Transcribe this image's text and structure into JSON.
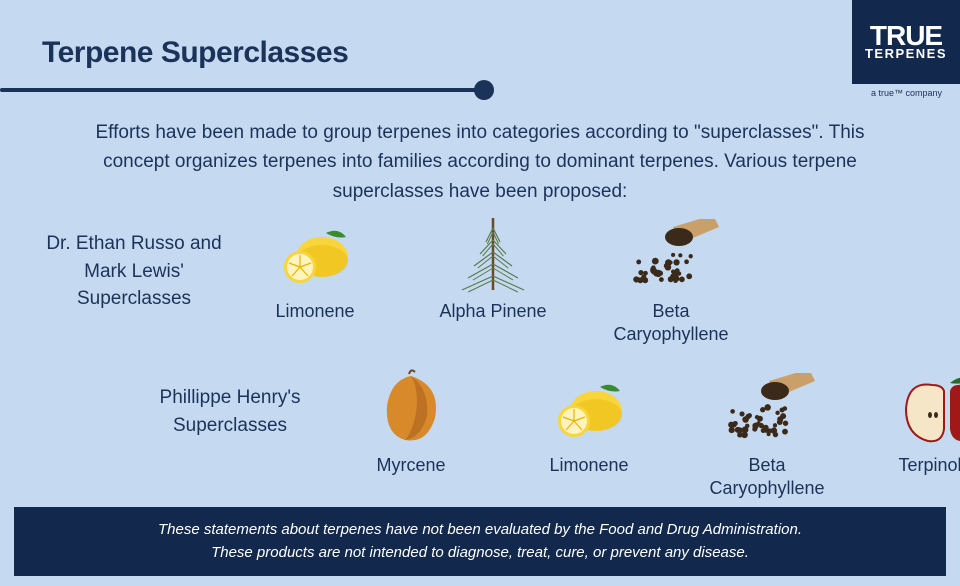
{
  "colors": {
    "page_bg": "#c5d9f0",
    "navy": "#1b3358",
    "text": "#1b3358",
    "footer_bg": "#12294d",
    "footer_text": "#ffffff",
    "logo_bg": "#12294d"
  },
  "typography": {
    "title_fontsize": 30,
    "body_fontsize": 19,
    "caption_fontsize": 18,
    "footer_fontsize": 15
  },
  "logo": {
    "line1": "TRUE",
    "line2": "TERPENES",
    "subline": "a true™ company"
  },
  "title": "Terpene Superclasses",
  "intro": "Efforts have been made to group terpenes into categories according to \"superclasses\". This concept organizes terpenes into families according to dominant terpenes. Various terpene superclasses have been proposed:",
  "rows": [
    {
      "label": "Dr. Ethan Russo and Mark Lewis' Superclasses",
      "items": [
        {
          "name": "Limonene",
          "icon": "lemon"
        },
        {
          "name": "Alpha Pinene",
          "icon": "pine"
        },
        {
          "name": "Beta Caryophyllene",
          "icon": "pepper"
        }
      ]
    },
    {
      "label": "Phillippe Henry's Superclasses",
      "items": [
        {
          "name": "Myrcene",
          "icon": "mango"
        },
        {
          "name": "Limonene",
          "icon": "lemon"
        },
        {
          "name": "Beta Caryophyllene",
          "icon": "pepper"
        },
        {
          "name": "Terpinolene",
          "icon": "apple"
        }
      ]
    }
  ],
  "footer": {
    "line1": "These statements about terpenes have not been evaluated by the Food and Drug Administration.",
    "line2": "These products are not intended to diagnose, treat, cure, or prevent any disease."
  },
  "icon_colors": {
    "lemon_body": "#f7d53b",
    "lemon_shadow": "#e8b400",
    "lemon_leaf": "#3a8a2e",
    "pine_needle": "#5a7a4a",
    "pine_branch": "#6b4a2a",
    "pepper_seed": "#3b2a1a",
    "pepper_scoop": "#c9a06a",
    "mango_body": "#d88a2a",
    "mango_shadow": "#a05a1a",
    "apple_body": "#a01818",
    "apple_flesh": "#f5e6c8",
    "apple_leaf": "#2a6a2a"
  }
}
